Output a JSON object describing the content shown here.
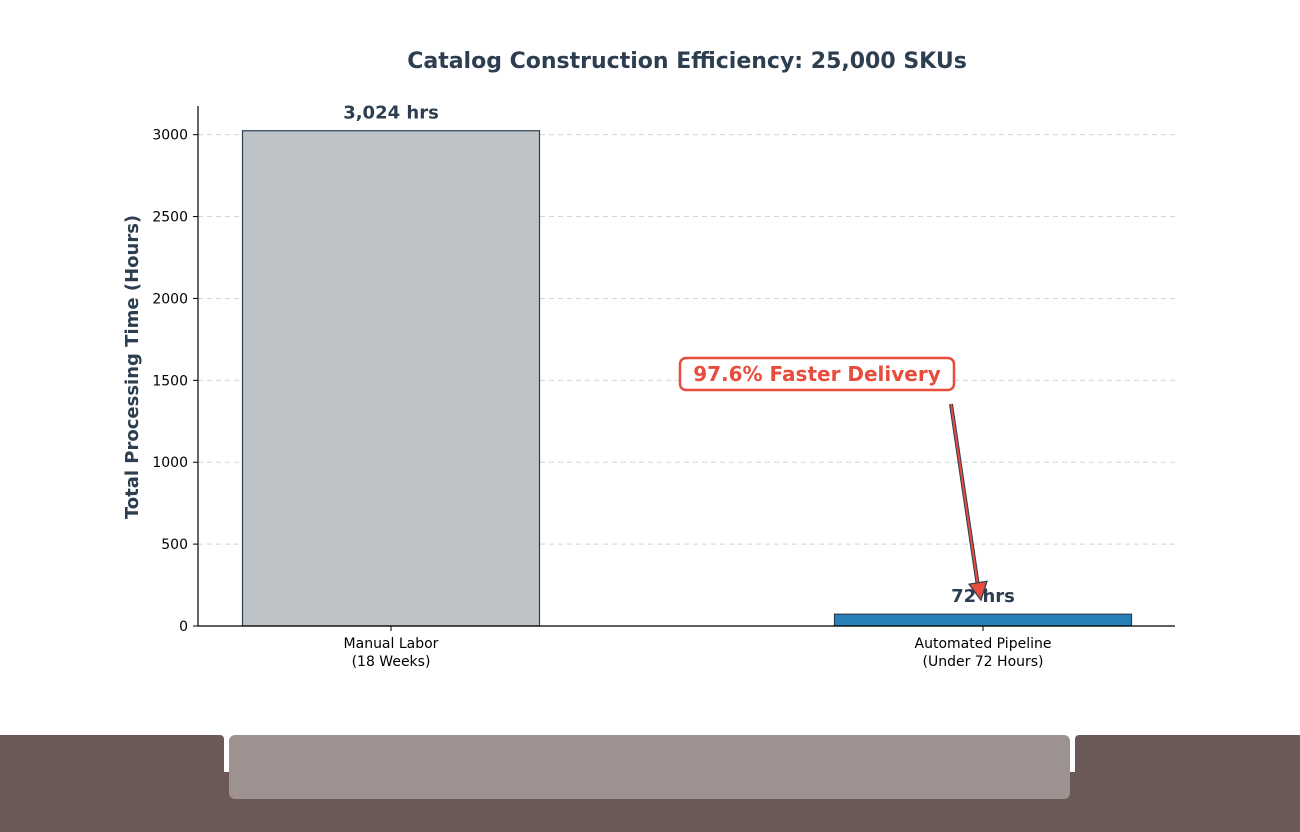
{
  "chart_data": {
    "type": "bar",
    "title": "Catalog Construction Efficiency: 25,000 SKUs",
    "xlabel": "",
    "ylabel": "Total Processing Time (Hours)",
    "categories": [
      "Manual Labor\n(18 Weeks)",
      "Automated Pipeline\n(Under 72 Hours)"
    ],
    "values": [
      3024,
      72
    ],
    "value_labels": [
      "3,024 hrs",
      "72 hrs"
    ],
    "ylim": [
      0,
      3175
    ],
    "yticks": [
      0,
      500,
      1000,
      1500,
      2000,
      2500,
      3000
    ],
    "grid": "horizontal-dashed",
    "bar_colors": [
      "#bdc3c7",
      "#2980b9"
    ],
    "bar_edge_color": "#2c3e50",
    "annotation": {
      "text": "97.6% Faster Delivery",
      "color": "#e74c3c",
      "points_to_category": 1,
      "points_to_value": 72
    },
    "text_color": "#2c3e50"
  },
  "footer": {
    "colors": {
      "dark": "#6b5957",
      "light": "#9e9291"
    }
  }
}
